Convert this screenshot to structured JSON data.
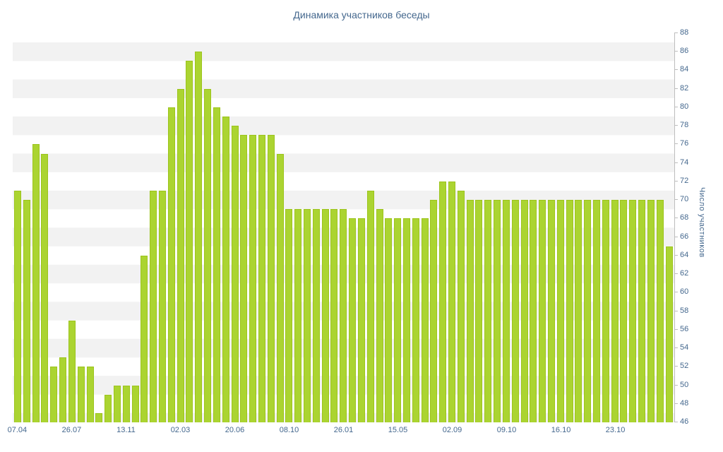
{
  "title": "Динамика участников беседы",
  "colors": {
    "bar_fill": "#abd431",
    "bar_border": "#9cc41c",
    "stripe": "#f2f2f2",
    "axis_gray": "#bdbdbd",
    "text_blue": "#45688e"
  },
  "chart_data": {
    "type": "bar",
    "title": "Динамика участников беседы",
    "xlabel": "",
    "ylabel": "Число участников",
    "ylim": [
      46,
      88
    ],
    "grid": "horizontal-stripes",
    "legend": "none",
    "y_ticks": [
      46,
      48,
      50,
      52,
      54,
      56,
      58,
      60,
      62,
      64,
      66,
      68,
      70,
      72,
      74,
      76,
      78,
      80,
      82,
      84,
      86,
      88
    ],
    "x_tick_labels": [
      "07.04",
      "26.07",
      "13.11",
      "02.03",
      "20.06",
      "08.10",
      "26.01",
      "15.05",
      "02.09",
      "09.10",
      "16.10",
      "23.10"
    ],
    "x_tick_every": 6,
    "values": [
      71,
      70,
      76,
      75,
      52,
      53,
      57,
      52,
      52,
      47,
      49,
      50,
      50,
      50,
      64,
      71,
      71,
      80,
      82,
      85,
      86,
      82,
      80,
      79,
      78,
      77,
      77,
      77,
      77,
      75,
      69,
      69,
      69,
      69,
      69,
      69,
      69,
      68,
      68,
      71,
      69,
      68,
      68,
      68,
      68,
      68,
      70,
      72,
      72,
      71,
      70,
      70,
      70,
      70,
      70,
      70,
      70,
      70,
      70,
      70,
      70,
      70,
      70,
      70,
      70,
      70,
      70,
      70,
      70,
      70,
      70,
      70,
      65
    ]
  }
}
